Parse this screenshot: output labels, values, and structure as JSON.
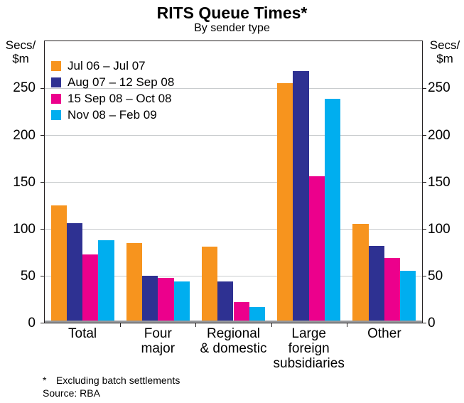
{
  "page": {
    "title": "RITS Queue Times*",
    "subtitle": "By sender type",
    "unit_lines": [
      "Secs/",
      "$m"
    ],
    "footnote_marker": "*",
    "footnote": "Excluding batch settlements",
    "source": "Source: RBA"
  },
  "colors": {
    "grid": "#c9ccce",
    "axis_box": "#231f20",
    "baseline": "#97999c",
    "text": "#000000",
    "series_orange": "#F7941E",
    "series_navy": "#2E3192",
    "series_magenta": "#EC008C",
    "series_cyan": "#00AEEF"
  },
  "chart_data": {
    "type": "bar",
    "title": "RITS Queue Times*",
    "subtitle": "By sender type",
    "xlabel": "",
    "ylabel": "Secs/$m",
    "ylim": [
      0,
      300
    ],
    "yticks": [
      0,
      50,
      100,
      150,
      200,
      250
    ],
    "grid": true,
    "legend_position": "top-left",
    "categories": [
      "Total",
      "Four\nmajor",
      "Regional\n& domestic",
      "Large\nforeign\nsubsidiaries",
      "Other"
    ],
    "series": [
      {
        "name": "Jul 06 – Jul 07",
        "color": "#F7941E",
        "values": [
          125,
          85,
          81,
          255,
          105
        ]
      },
      {
        "name": "Aug 07 – 12 Sep 08",
        "color": "#2E3192",
        "values": [
          106,
          50,
          44,
          268,
          82
        ]
      },
      {
        "name": "15 Sep 08 – Oct 08",
        "color": "#EC008C",
        "values": [
          73,
          48,
          22,
          156,
          69
        ]
      },
      {
        "name": "Nov 08 – Feb 09",
        "color": "#00AEEF",
        "values": [
          88,
          44,
          17,
          239,
          55
        ]
      }
    ]
  }
}
